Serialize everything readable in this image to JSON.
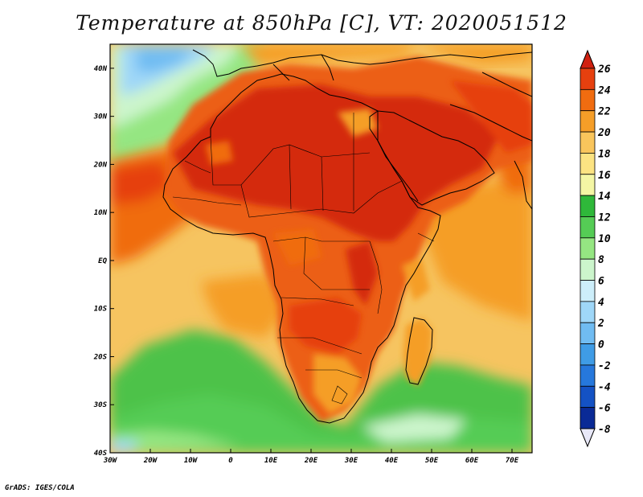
{
  "title": "Temperature at 850hPa [C], VT: 2020051512",
  "footer": "GrADS: IGES/COLA",
  "axes": {
    "x_ticks": [
      "30W",
      "20W",
      "10W",
      "0",
      "10E",
      "20E",
      "30E",
      "40E",
      "50E",
      "60E",
      "70E"
    ],
    "y_ticks": [
      "40N",
      "30N",
      "20N",
      "10N",
      "EQ",
      "10S",
      "20S",
      "30S",
      "40S"
    ]
  },
  "colorbar": {
    "labels": [
      "26",
      "24",
      "22",
      "20",
      "18",
      "16",
      "14",
      "12",
      "10",
      "8",
      "6",
      "4",
      "2",
      "0",
      "-2",
      "-4",
      "-6",
      "-8"
    ],
    "colors": [
      "#d02010",
      "#e6400f",
      "#f06c10",
      "#f59e28",
      "#f9c55c",
      "#fce382",
      "#f4f6a4",
      "#2fb83a",
      "#55cc55",
      "#95e682",
      "#ccf5cc",
      "#cdeefa",
      "#9fd7f8",
      "#70bcf2",
      "#3f9ce6",
      "#2678dc",
      "#1452c4",
      "#0a2a96",
      "#081a70"
    ]
  },
  "colors": {
    "ocean_south": "#4ec24a",
    "ocean_mid": "#f6c460",
    "land_hot": "#d42a10",
    "land_warm": "#ec5f12",
    "mediterranean_cool": "#95e682",
    "atlantic_cold": "#70bcf2",
    "coastline": "#000000"
  }
}
